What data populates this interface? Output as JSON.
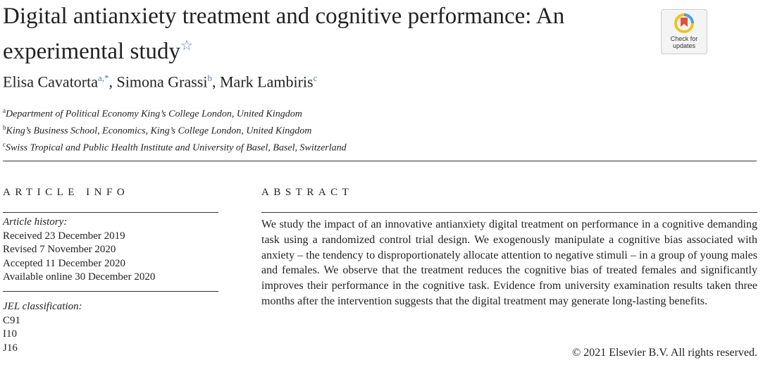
{
  "header": {
    "title": "Digital antianxiety treatment and cognitive performance: An experimental study",
    "title_marker": "☆",
    "badge": "Check for updates",
    "authors": [
      {
        "name": "Elisa Cavatorta",
        "sup": "a,*"
      },
      {
        "name": "Simona Grassi",
        "sup": "b"
      },
      {
        "name": "Mark Lambiris",
        "sup": "c"
      }
    ],
    "affiliations": [
      {
        "label": "a",
        "text": "Department of Political Economy King’s College London, United Kingdom"
      },
      {
        "label": "b",
        "text": "King’s Business School, Economics, King’s College London, United Kingdom"
      },
      {
        "label": "c",
        "text": "Swiss Tropical and Public Health Institute and University of Basel, Basel, Switzerland"
      }
    ]
  },
  "article_info": {
    "heading": "ARTICLE INFO",
    "history_label": "Article history:",
    "history": [
      "Received 23 December 2019",
      "Revised 7 November 2020",
      "Accepted 11 December 2020",
      "Available online 30 December 2020"
    ],
    "jel_label": "JEL classification:",
    "jel": [
      "C91",
      "I10",
      "J16"
    ]
  },
  "abstract": {
    "heading": "ABSTRACT",
    "text": "We study the impact of an innovative antianxiety digital treatment on performance in a cognitive demanding task using a randomized control trial design. We exogenously manipulate a cognitive bias associated with anxiety – the tendency to disproportionately allocate attention to negative stimuli – in a group of young males and females. We observe that the treatment reduces the cognitive bias of treated females and significantly improves their performance in the cognitive task. Evidence from university examination results taken three months after the intervention suggests that the digital treatment may generate long-lasting benefits.",
    "copyright": "© 2021 Elsevier B.V. All rights reserved."
  }
}
